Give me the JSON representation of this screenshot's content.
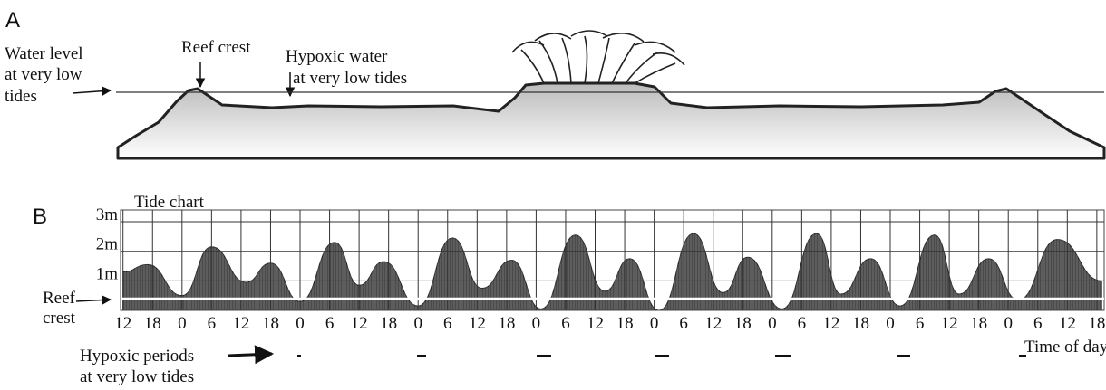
{
  "panel_a": {
    "letter": "A",
    "water_level_lines": [
      "Water level",
      "at very low",
      "tides"
    ],
    "reef_crest": "Reef crest",
    "hypoxic_water_lines": [
      "Hypoxic water",
      "at very low tides"
    ]
  },
  "panel_b": {
    "letter": "B",
    "reef_crest_lines": [
      "Reef",
      "crest"
    ],
    "hypoxic_periods_lines": [
      "Hypoxic periods",
      "at very low tides"
    ]
  },
  "chart_data": {
    "type": "area",
    "title": "Tide chart",
    "xlabel": "Time of day",
    "x": [
      12,
      17,
      24,
      30,
      37,
      42,
      48,
      55,
      60,
      65,
      72,
      79,
      85,
      91,
      97,
      104,
      110,
      115,
      121,
      128,
      134,
      139,
      146,
      153,
      158,
      164,
      170,
      177,
      182,
      188,
      194,
      202,
      211
    ],
    "values": [
      1.3,
      1.55,
      0.5,
      2.15,
      0.95,
      1.6,
      0.3,
      2.3,
      0.85,
      1.65,
      0.15,
      2.45,
      0.75,
      1.7,
      0.05,
      2.55,
      0.65,
      1.75,
      0.0,
      2.6,
      0.6,
      1.8,
      0.05,
      2.6,
      0.55,
      1.75,
      0.15,
      2.55,
      0.55,
      1.75,
      0.35,
      2.4,
      1.0
    ],
    "color": "#4a4a4a",
    "grid": true,
    "reef_crest_level": 0.4,
    "ylim": [
      0,
      3.4
    ],
    "yticks": [
      {
        "value": 1,
        "label": "1m"
      },
      {
        "value": 2,
        "label": "2m"
      },
      {
        "value": 3,
        "label": "3m"
      }
    ],
    "xlim": [
      11.5,
      211.5
    ],
    "xticks": [
      {
        "value": 12,
        "label": "12"
      },
      {
        "value": 18,
        "label": "18"
      },
      {
        "value": 24,
        "label": "0"
      },
      {
        "value": 30,
        "label": "6"
      },
      {
        "value": 36,
        "label": "12"
      },
      {
        "value": 42,
        "label": "18"
      },
      {
        "value": 48,
        "label": "0"
      },
      {
        "value": 54,
        "label": "6"
      },
      {
        "value": 60,
        "label": "12"
      },
      {
        "value": 66,
        "label": "18"
      },
      {
        "value": 72,
        "label": "0"
      },
      {
        "value": 78,
        "label": "6"
      },
      {
        "value": 84,
        "label": "12"
      },
      {
        "value": 90,
        "label": "18"
      },
      {
        "value": 96,
        "label": "0"
      },
      {
        "value": 102,
        "label": "6"
      },
      {
        "value": 108,
        "label": "12"
      },
      {
        "value": 114,
        "label": "18"
      },
      {
        "value": 120,
        "label": "0"
      },
      {
        "value": 126,
        "label": "6"
      },
      {
        "value": 132,
        "label": "12"
      },
      {
        "value": 138,
        "label": "18"
      },
      {
        "value": 144,
        "label": "0"
      },
      {
        "value": 150,
        "label": "6"
      },
      {
        "value": 156,
        "label": "12"
      },
      {
        "value": 162,
        "label": "18"
      },
      {
        "value": 168,
        "label": "0"
      },
      {
        "value": 174,
        "label": "6"
      },
      {
        "value": 180,
        "label": "12"
      },
      {
        "value": 186,
        "label": "18"
      },
      {
        "value": 192,
        "label": "0"
      },
      {
        "value": 198,
        "label": "6"
      },
      {
        "value": 204,
        "label": "12"
      },
      {
        "value": 210,
        "label": "18"
      }
    ]
  }
}
